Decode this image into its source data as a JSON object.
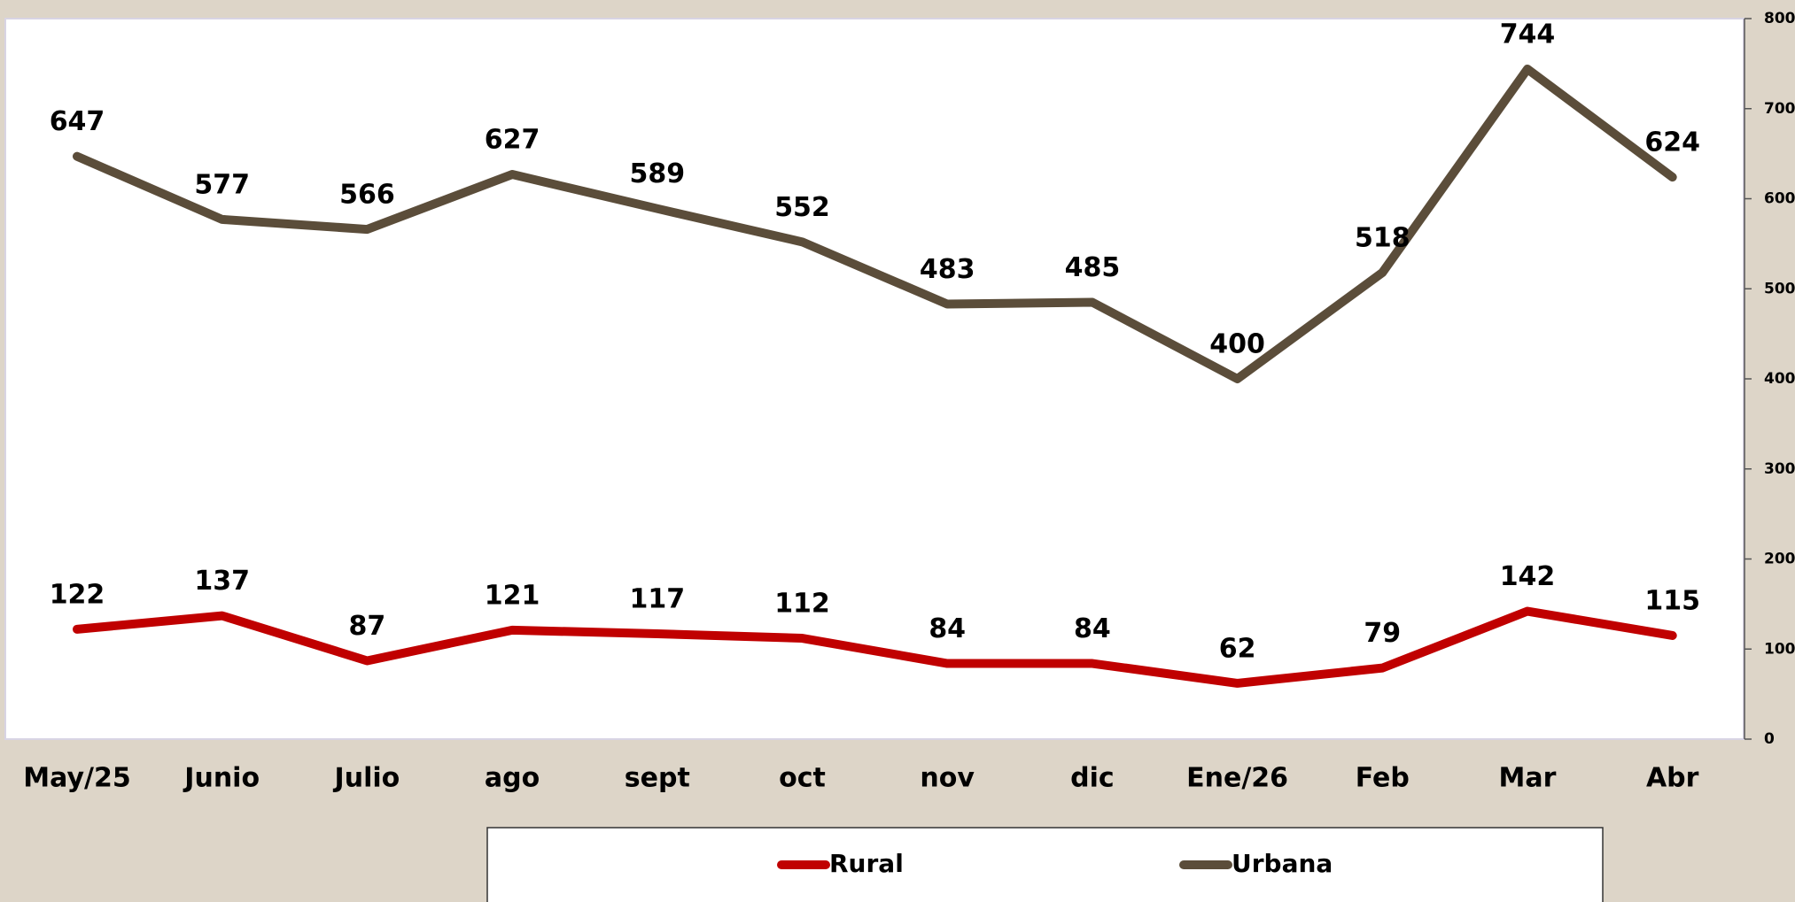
{
  "chart_data": {
    "type": "line",
    "categories": [
      "May/25",
      "Junio",
      "Julio",
      "ago",
      "sept",
      "oct",
      "nov",
      "dic",
      "Ene/26",
      "Feb",
      "Mar",
      "Abr"
    ],
    "series": [
      {
        "name": "Rural",
        "color": "#c00000",
        "values": [
          122,
          137,
          87,
          121,
          117,
          112,
          84,
          84,
          62,
          79,
          142,
          115
        ]
      },
      {
        "name": "Urbana",
        "color": "#5b4d3a",
        "values": [
          647,
          577,
          566,
          627,
          589,
          552,
          483,
          485,
          400,
          518,
          744,
          624
        ]
      }
    ],
    "ylim": [
      0,
      800
    ],
    "yticks": [
      0,
      100,
      200,
      300,
      400,
      500,
      600,
      700,
      800
    ],
    "axis_side": "right",
    "legend": "bottom"
  }
}
